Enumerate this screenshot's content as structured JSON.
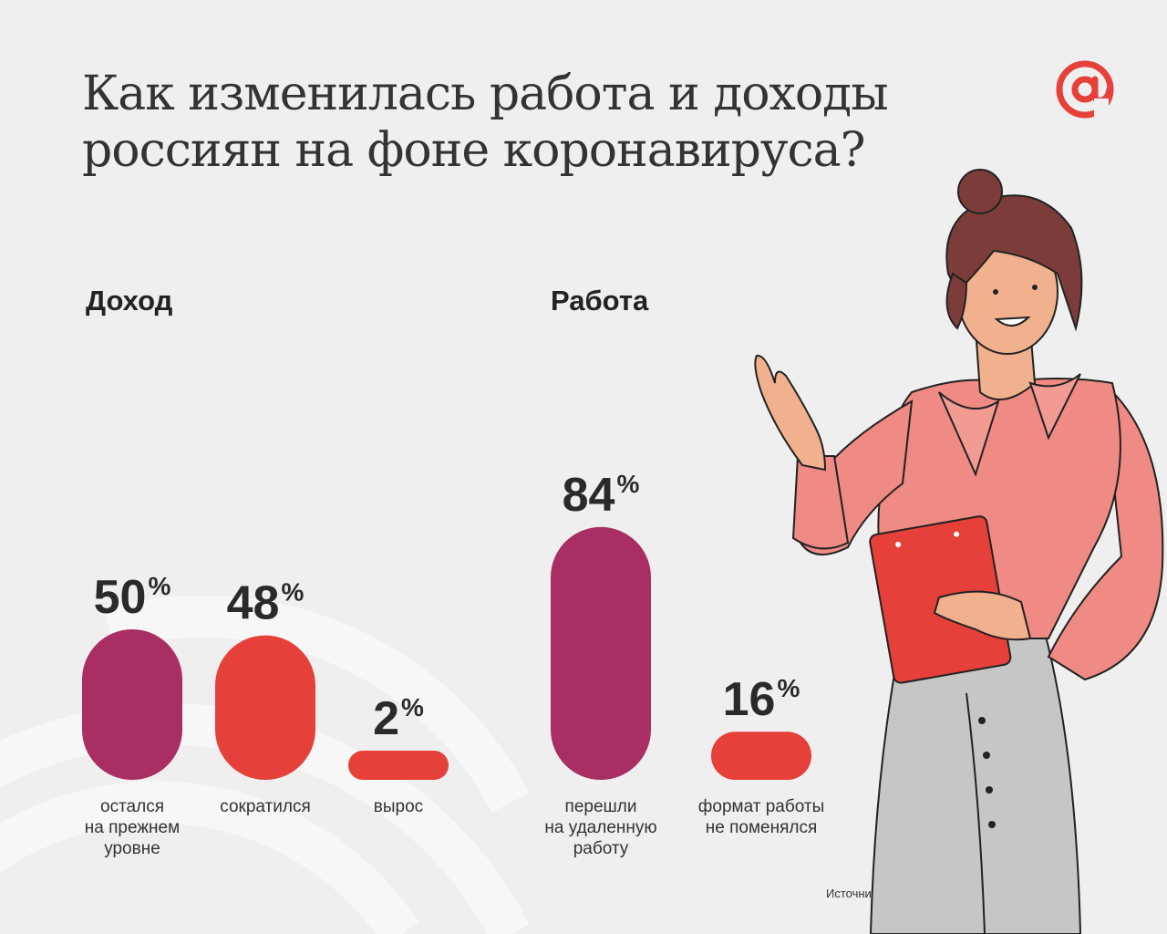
{
  "title": {
    "line1": "Как изменилась работа и доходы",
    "line2": "россиян на фоне коронавируса?"
  },
  "logo": {
    "icon": "at-sign-logo",
    "color": "#e5403a"
  },
  "source": "Источник: опрос Mail.ru Group и ResearchMe",
  "colors": {
    "purple": "#a82e63",
    "red": "#e5403a",
    "background": "#efeff0"
  },
  "chart_data": [
    {
      "type": "bar",
      "title": "Доход",
      "categories": [
        "остался\nна прежнем\nуровне",
        "сократился",
        "вырос"
      ],
      "category_lines": [
        [
          "остался",
          "на прежнем",
          "уровне"
        ],
        [
          "сократился"
        ],
        [
          "вырос"
        ]
      ],
      "values": [
        50,
        48,
        2
      ],
      "value_labels": [
        "50",
        "48",
        "2"
      ],
      "unit": "%",
      "colors": [
        "#a82e63",
        "#e5403a",
        "#e5403a"
      ]
    },
    {
      "type": "bar",
      "title": "Работа",
      "categories": [
        "перешли\nна удаленную\nработу",
        "формат работы\nне поменялся"
      ],
      "category_lines": [
        [
          "перешли",
          "на удаленную",
          "работу"
        ],
        [
          "формат работы",
          "не поменялся"
        ]
      ],
      "values": [
        84,
        16
      ],
      "value_labels": [
        "84",
        "16"
      ],
      "unit": "%",
      "colors": [
        "#a82e63",
        "#e5403a"
      ]
    }
  ]
}
